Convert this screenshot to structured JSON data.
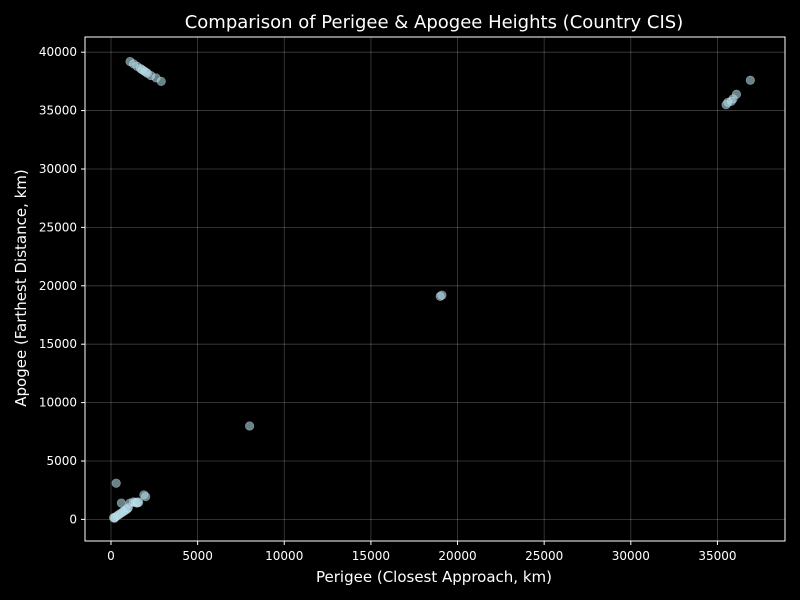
{
  "chart_data": {
    "type": "scatter",
    "title": "Comparison of Perigee & Apogee Heights (Country CIS)",
    "xlabel": "Perigee (Closest Approach, km)",
    "ylabel": "Apogee (Farthest Distance, km)",
    "xlim": [
      -1500,
      38900
    ],
    "ylim": [
      -1850,
      41300
    ],
    "xticks": [
      0,
      5000,
      10000,
      15000,
      20000,
      25000,
      30000,
      35000
    ],
    "yticks": [
      0,
      5000,
      10000,
      15000,
      20000,
      25000,
      30000,
      35000,
      40000
    ],
    "grid": true,
    "background": "#000000",
    "point_color": "#add8e6",
    "point_opacity": 0.6,
    "x": [
      1100,
      1300,
      1500,
      1700,
      1900,
      2100,
      2300,
      2600,
      2900,
      1800,
      2000,
      36900,
      36100,
      35900,
      35800,
      35600,
      35500,
      19000,
      19100,
      8000,
      300,
      200,
      150,
      250,
      350,
      450,
      550,
      650,
      750,
      850,
      950,
      1000,
      1100,
      1300,
      1400,
      1500,
      1600,
      1550,
      600,
      1900,
      2000
    ],
    "y": [
      39200,
      39000,
      38800,
      38600,
      38400,
      38200,
      38000,
      37800,
      37500,
      38500,
      38300,
      37600,
      36400,
      36000,
      35800,
      35700,
      35500,
      19100,
      19200,
      8000,
      3100,
      100,
      150,
      200,
      300,
      400,
      500,
      600,
      700,
      800,
      900,
      1000,
      1400,
      1500,
      1450,
      1400,
      1450,
      1500,
      1400,
      2100,
      1950
    ]
  }
}
